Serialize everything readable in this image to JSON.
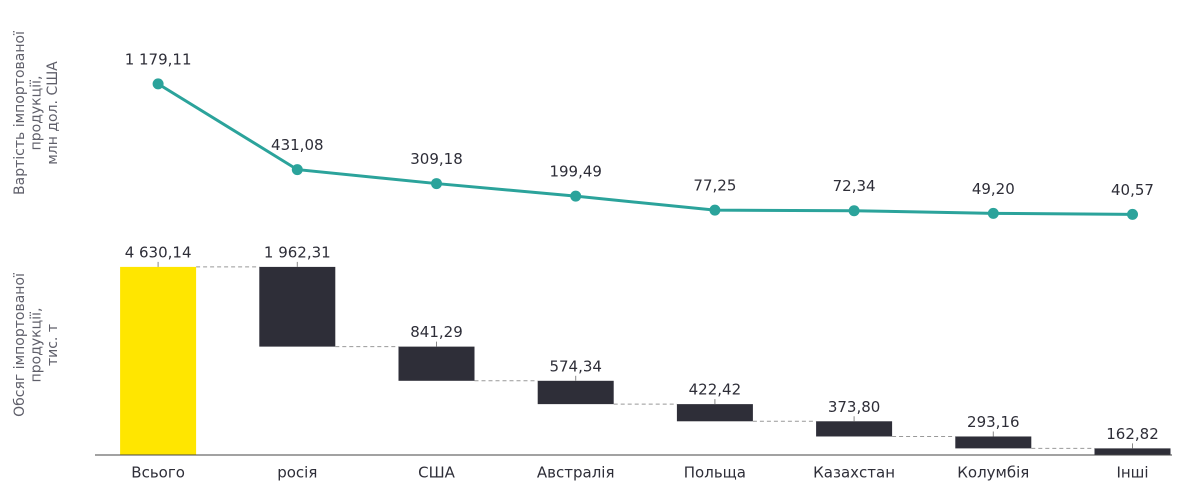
{
  "chart_data": [
    {
      "type": "line",
      "ylabel": [
        "Вартість імпортованої",
        "продукції,",
        "млн дол. США"
      ],
      "values": [
        1179.11,
        431.08,
        309.18,
        199.49,
        77.25,
        72.34,
        49.2,
        40.57
      ],
      "value_labels": [
        "1 179,11",
        "431,08",
        "309,18",
        "199,49",
        "77,25",
        "72,34",
        "49,20",
        "40,57"
      ],
      "color": "#2ba39b",
      "ylim": [
        0,
        1300
      ]
    },
    {
      "type": "waterfall",
      "ylabel": [
        "Обсяг імпортованої",
        "продукції,",
        "тис. т"
      ],
      "categories": [
        "Всього",
        "росія",
        "США",
        "Австралія",
        "Польща",
        "Казахстан",
        "Колумбія",
        "Інші"
      ],
      "values": [
        4630.14,
        1962.31,
        841.29,
        574.34,
        422.42,
        373.8,
        293.16,
        162.82
      ],
      "value_labels": [
        "4 630,14",
        "1 962,31",
        "841,29",
        "574,34",
        "422,42",
        "373,80",
        "293,16",
        "162,82"
      ],
      "total_color": "#ffe600",
      "color": "#2e2e38",
      "ylim": [
        0,
        4800
      ]
    }
  ]
}
